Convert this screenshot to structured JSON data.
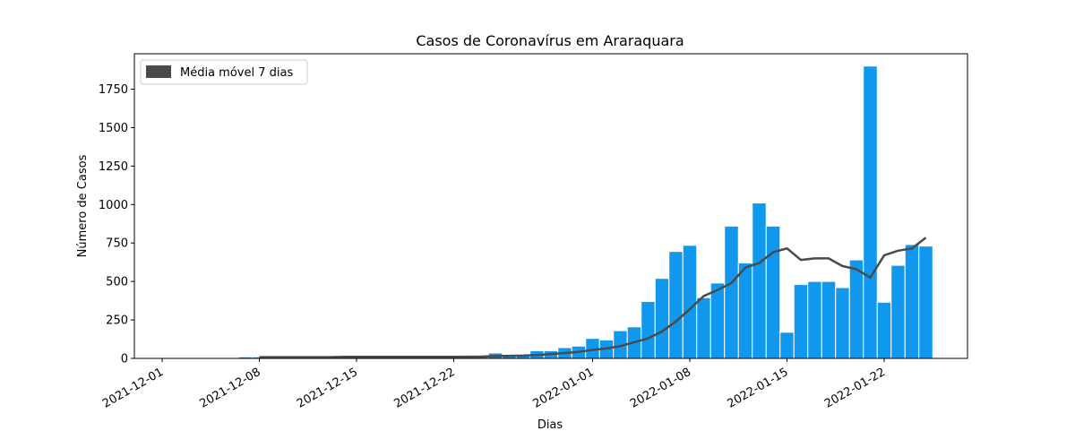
{
  "chart_data": {
    "type": "bar",
    "title": "Casos de Coronavírus em Araraquara",
    "xlabel": "Dias",
    "ylabel": "Número de Casos",
    "xlim": [
      "2021-11-29",
      "2022-01-28"
    ],
    "ylim": [
      0,
      1980
    ],
    "yticks": [
      0,
      250,
      500,
      750,
      1000,
      1250,
      1500,
      1750
    ],
    "xticks": [
      "2021-12-01",
      "2021-12-08",
      "2021-12-15",
      "2021-12-22",
      "2022-01-01",
      "2022-01-08",
      "2022-01-15",
      "2022-01-22"
    ],
    "grid": false,
    "legend": {
      "position": "upper-left",
      "entries": [
        "Média móvel 7 dias"
      ]
    },
    "colors": {
      "bars": "#0f98ee",
      "bar_edge": "#ffffff",
      "line": "#4a4a4a",
      "legend_patch": "#4a4a4a"
    },
    "series": [
      {
        "type": "bar",
        "dates": [
          "2021-12-02",
          "2021-12-03",
          "2021-12-04",
          "2021-12-05",
          "2021-12-06",
          "2021-12-07",
          "2021-12-08",
          "2021-12-09",
          "2021-12-10",
          "2021-12-11",
          "2021-12-12",
          "2021-12-13",
          "2021-12-14",
          "2021-12-15",
          "2021-12-16",
          "2021-12-17",
          "2021-12-18",
          "2021-12-19",
          "2021-12-20",
          "2021-12-21",
          "2021-12-22",
          "2021-12-23",
          "2021-12-24",
          "2021-12-25",
          "2021-12-26",
          "2021-12-27",
          "2021-12-28",
          "2021-12-29",
          "2021-12-30",
          "2021-12-31",
          "2022-01-01",
          "2022-01-02",
          "2022-01-03",
          "2022-01-04",
          "2022-01-05",
          "2022-01-06",
          "2022-01-07",
          "2022-01-08",
          "2022-01-09",
          "2022-01-10",
          "2022-01-11",
          "2022-01-12",
          "2022-01-13",
          "2022-01-14",
          "2022-01-15",
          "2022-01-16",
          "2022-01-17",
          "2022-01-18",
          "2022-01-19",
          "2022-01-20",
          "2022-01-21",
          "2022-01-22",
          "2022-01-23",
          "2022-01-24",
          "2022-01-25"
        ],
        "values": [
          5,
          5,
          5,
          4,
          0,
          10,
          10,
          10,
          10,
          10,
          10,
          10,
          10,
          10,
          10,
          10,
          10,
          10,
          10,
          10,
          10,
          10,
          15,
          35,
          20,
          20,
          50,
          50,
          70,
          80,
          130,
          120,
          180,
          205,
          370,
          520,
          695,
          735,
          395,
          490,
          860,
          620,
          1010,
          860,
          170,
          480,
          500,
          500,
          460,
          640,
          1900,
          365,
          605,
          740,
          730
        ]
      },
      {
        "name": "Média móvel 7 dias",
        "type": "line",
        "dates": [
          "2021-12-08",
          "2021-12-09",
          "2021-12-10",
          "2021-12-11",
          "2021-12-12",
          "2021-12-13",
          "2021-12-14",
          "2021-12-15",
          "2021-12-16",
          "2021-12-17",
          "2021-12-18",
          "2021-12-19",
          "2021-12-20",
          "2021-12-21",
          "2021-12-22",
          "2021-12-23",
          "2021-12-24",
          "2021-12-25",
          "2021-12-26",
          "2021-12-27",
          "2021-12-28",
          "2021-12-29",
          "2021-12-30",
          "2021-12-31",
          "2022-01-01",
          "2022-01-02",
          "2022-01-03",
          "2022-01-04",
          "2022-01-05",
          "2022-01-06",
          "2022-01-07",
          "2022-01-08",
          "2022-01-09",
          "2022-01-10",
          "2022-01-11",
          "2022-01-12",
          "2022-01-13",
          "2022-01-14",
          "2022-01-15",
          "2022-01-16",
          "2022-01-17",
          "2022-01-18",
          "2022-01-19",
          "2022-01-20",
          "2022-01-21",
          "2022-01-22",
          "2022-01-23",
          "2022-01-24",
          "2022-01-25"
        ],
        "values": [
          8,
          8,
          8,
          8,
          8,
          8,
          10,
          10,
          10,
          10,
          10,
          10,
          10,
          10,
          10,
          11,
          12,
          15,
          17,
          18,
          22,
          28,
          35,
          42,
          55,
          65,
          80,
          105,
          130,
          175,
          240,
          320,
          405,
          445,
          490,
          590,
          620,
          690,
          715,
          640,
          650,
          650,
          600,
          580,
          525,
          670,
          700,
          715,
          785
        ]
      }
    ]
  }
}
